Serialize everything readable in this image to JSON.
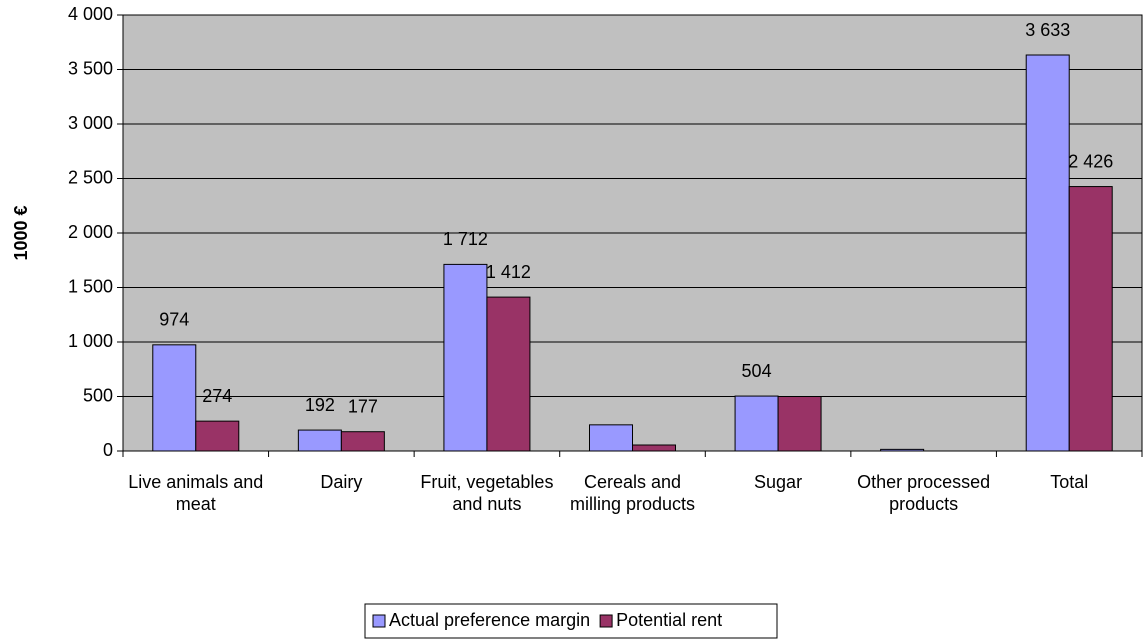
{
  "chart_data": {
    "type": "bar",
    "y_label": "1000 €",
    "categories": [
      "Live animals and meat",
      "Dairy",
      "Fruit, vegetables and nuts",
      "Cereals and milling products",
      "Sugar",
      "Other processed products",
      "Total"
    ],
    "series": [
      {
        "name": "Actual preference margin",
        "color": "#9999ff",
        "values": [
          974,
          192,
          1712,
          240,
          504,
          15,
          3633
        ],
        "value_labels": [
          "974",
          "192",
          "1 712",
          null,
          "504",
          null,
          "3 633"
        ]
      },
      {
        "name": "Potential rent",
        "color": "#993366",
        "values": [
          274,
          177,
          1412,
          55,
          500,
          0,
          2426
        ],
        "value_labels": [
          "274",
          "177",
          "1 412",
          null,
          null,
          null,
          "2 426"
        ]
      }
    ],
    "ylim": [
      0,
      4000
    ],
    "yticks": [
      0,
      500,
      {
        "value": 1000,
        "label": "1 000"
      },
      {
        "value": 1500,
        "label": "1 500"
      },
      {
        "value": 2000,
        "label": "2 000"
      },
      {
        "value": 2500,
        "label": "2 500"
      },
      {
        "value": 3000,
        "label": "3 000"
      },
      {
        "value": 3500,
        "label": "3 500"
      },
      {
        "value": 4000,
        "label": "4 000"
      }
    ],
    "grid": true,
    "plot_background": "#c0c0c0",
    "legend": "bottom"
  }
}
